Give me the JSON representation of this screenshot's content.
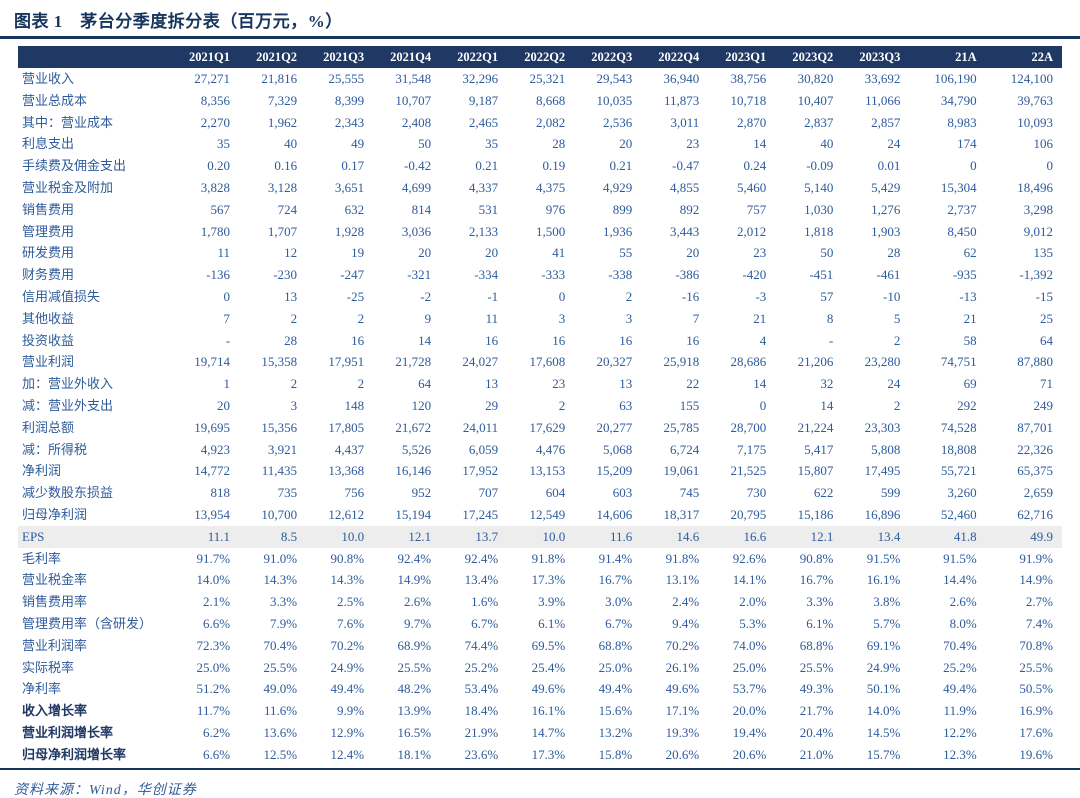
{
  "figure": {
    "title": "图表 1　茅台分季度拆分表（百万元，%）",
    "source": "资料来源：Wind，华创证券"
  },
  "colors": {
    "header_bg": "#1F3864",
    "header_text": "#FFFFFF",
    "value_text": "#2E5B9B",
    "title_text": "#17365D",
    "bold_label_text": "#1F3864",
    "highlight_row_bg": "#EDEDED",
    "rule": "#17365D"
  },
  "table": {
    "columns": [
      "2021Q1",
      "2021Q2",
      "2021Q3",
      "2021Q4",
      "2022Q1",
      "2022Q2",
      "2022Q3",
      "2022Q4",
      "2023Q1",
      "2023Q2",
      "2023Q3",
      "21A",
      "22A"
    ],
    "rows": [
      {
        "label": "营业收入",
        "style": "normal",
        "values": [
          "27,271",
          "21,816",
          "25,555",
          "31,548",
          "32,296",
          "25,321",
          "29,543",
          "36,940",
          "38,756",
          "30,820",
          "33,692",
          "106,190",
          "124,100"
        ]
      },
      {
        "label": "营业总成本",
        "style": "normal",
        "values": [
          "8,356",
          "7,329",
          "8,399",
          "10,707",
          "9,187",
          "8,668",
          "10,035",
          "11,873",
          "10,718",
          "10,407",
          "11,066",
          "34,790",
          "39,763"
        ]
      },
      {
        "label": "其中：营业成本",
        "style": "normal",
        "values": [
          "2,270",
          "1,962",
          "2,343",
          "2,408",
          "2,465",
          "2,082",
          "2,536",
          "3,011",
          "2,870",
          "2,837",
          "2,857",
          "8,983",
          "10,093"
        ]
      },
      {
        "label": "利息支出",
        "style": "normal",
        "values": [
          "35",
          "40",
          "49",
          "50",
          "35",
          "28",
          "20",
          "23",
          "14",
          "40",
          "24",
          "174",
          "106"
        ]
      },
      {
        "label": "手续费及佣金支出",
        "style": "normal",
        "values": [
          "0.20",
          "0.16",
          "0.17",
          "-0.42",
          "0.21",
          "0.19",
          "0.21",
          "-0.47",
          "0.24",
          "-0.09",
          "0.01",
          "0",
          "0"
        ]
      },
      {
        "label": "营业税金及附加",
        "style": "normal",
        "values": [
          "3,828",
          "3,128",
          "3,651",
          "4,699",
          "4,337",
          "4,375",
          "4,929",
          "4,855",
          "5,460",
          "5,140",
          "5,429",
          "15,304",
          "18,496"
        ]
      },
      {
        "label": "销售费用",
        "style": "normal",
        "values": [
          "567",
          "724",
          "632",
          "814",
          "531",
          "976",
          "899",
          "892",
          "757",
          "1,030",
          "1,276",
          "2,737",
          "3,298"
        ]
      },
      {
        "label": "管理费用",
        "style": "normal",
        "values": [
          "1,780",
          "1,707",
          "1,928",
          "3,036",
          "2,133",
          "1,500",
          "1,936",
          "3,443",
          "2,012",
          "1,818",
          "1,903",
          "8,450",
          "9,012"
        ]
      },
      {
        "label": "研发费用",
        "style": "normal",
        "values": [
          "11",
          "12",
          "19",
          "20",
          "20",
          "41",
          "55",
          "20",
          "23",
          "50",
          "28",
          "62",
          "135"
        ]
      },
      {
        "label": "财务费用",
        "style": "normal",
        "values": [
          "-136",
          "-230",
          "-247",
          "-321",
          "-334",
          "-333",
          "-338",
          "-386",
          "-420",
          "-451",
          "-461",
          "-935",
          "-1,392"
        ]
      },
      {
        "label": "信用减值损失",
        "style": "normal",
        "values": [
          "0",
          "13",
          "-25",
          "-2",
          "-1",
          "0",
          "2",
          "-16",
          "-3",
          "57",
          "-10",
          "-13",
          "-15"
        ]
      },
      {
        "label": "其他收益",
        "style": "normal",
        "values": [
          "7",
          "2",
          "2",
          "9",
          "11",
          "3",
          "3",
          "7",
          "21",
          "8",
          "5",
          "21",
          "25"
        ]
      },
      {
        "label": "投资收益",
        "style": "normal",
        "values": [
          "-",
          "28",
          "16",
          "14",
          "16",
          "16",
          "16",
          "16",
          "4",
          "-",
          "2",
          "58",
          "64"
        ]
      },
      {
        "label": "营业利润",
        "style": "normal",
        "values": [
          "19,714",
          "15,358",
          "17,951",
          "21,728",
          "24,027",
          "17,608",
          "20,327",
          "25,918",
          "28,686",
          "21,206",
          "23,280",
          "74,751",
          "87,880"
        ]
      },
      {
        "label": "加：营业外收入",
        "style": "normal",
        "values": [
          "1",
          "2",
          "2",
          "64",
          "13",
          "23",
          "13",
          "22",
          "14",
          "32",
          "24",
          "69",
          "71"
        ]
      },
      {
        "label": "减：营业外支出",
        "style": "normal",
        "values": [
          "20",
          "3",
          "148",
          "120",
          "29",
          "2",
          "63",
          "155",
          "0",
          "14",
          "2",
          "292",
          "249"
        ]
      },
      {
        "label": "利润总额",
        "style": "normal",
        "values": [
          "19,695",
          "15,356",
          "17,805",
          "21,672",
          "24,011",
          "17,629",
          "20,277",
          "25,785",
          "28,700",
          "21,224",
          "23,303",
          "74,528",
          "87,701"
        ]
      },
      {
        "label": "减：所得税",
        "style": "normal",
        "values": [
          "4,923",
          "3,921",
          "4,437",
          "5,526",
          "6,059",
          "4,476",
          "5,068",
          "6,724",
          "7,175",
          "5,417",
          "5,808",
          "18,808",
          "22,326"
        ]
      },
      {
        "label": "净利润",
        "style": "normal",
        "values": [
          "14,772",
          "11,435",
          "13,368",
          "16,146",
          "17,952",
          "13,153",
          "15,209",
          "19,061",
          "21,525",
          "15,807",
          "17,495",
          "55,721",
          "65,375"
        ]
      },
      {
        "label": "减少数股东损益",
        "style": "normal",
        "values": [
          "818",
          "735",
          "756",
          "952",
          "707",
          "604",
          "603",
          "745",
          "730",
          "622",
          "599",
          "3,260",
          "2,659"
        ]
      },
      {
        "label": "归母净利润",
        "style": "normal",
        "values": [
          "13,954",
          "10,700",
          "12,612",
          "15,194",
          "17,245",
          "12,549",
          "14,606",
          "18,317",
          "20,795",
          "15,186",
          "16,896",
          "52,460",
          "62,716"
        ]
      },
      {
        "label": "EPS",
        "style": "highlight",
        "values": [
          "11.1",
          "8.5",
          "10.0",
          "12.1",
          "13.7",
          "10.0",
          "11.6",
          "14.6",
          "16.6",
          "12.1",
          "13.4",
          "41.8",
          "49.9"
        ]
      },
      {
        "label": "毛利率",
        "style": "normal",
        "values": [
          "91.7%",
          "91.0%",
          "90.8%",
          "92.4%",
          "92.4%",
          "91.8%",
          "91.4%",
          "91.8%",
          "92.6%",
          "90.8%",
          "91.5%",
          "91.5%",
          "91.9%"
        ]
      },
      {
        "label": "营业税金率",
        "style": "normal",
        "values": [
          "14.0%",
          "14.3%",
          "14.3%",
          "14.9%",
          "13.4%",
          "17.3%",
          "16.7%",
          "13.1%",
          "14.1%",
          "16.7%",
          "16.1%",
          "14.4%",
          "14.9%"
        ]
      },
      {
        "label": "销售费用率",
        "style": "normal",
        "values": [
          "2.1%",
          "3.3%",
          "2.5%",
          "2.6%",
          "1.6%",
          "3.9%",
          "3.0%",
          "2.4%",
          "2.0%",
          "3.3%",
          "3.8%",
          "2.6%",
          "2.7%"
        ]
      },
      {
        "label": "管理费用率（含研发）",
        "style": "normal",
        "values": [
          "6.6%",
          "7.9%",
          "7.6%",
          "9.7%",
          "6.7%",
          "6.1%",
          "6.7%",
          "9.4%",
          "5.3%",
          "6.1%",
          "5.7%",
          "8.0%",
          "7.4%"
        ]
      },
      {
        "label": "营业利润率",
        "style": "normal",
        "values": [
          "72.3%",
          "70.4%",
          "70.2%",
          "68.9%",
          "74.4%",
          "69.5%",
          "68.8%",
          "70.2%",
          "74.0%",
          "68.8%",
          "69.1%",
          "70.4%",
          "70.8%"
        ]
      },
      {
        "label": "实际税率",
        "style": "normal",
        "values": [
          "25.0%",
          "25.5%",
          "24.9%",
          "25.5%",
          "25.2%",
          "25.4%",
          "25.0%",
          "26.1%",
          "25.0%",
          "25.5%",
          "24.9%",
          "25.2%",
          "25.5%"
        ]
      },
      {
        "label": "净利率",
        "style": "normal",
        "values": [
          "51.2%",
          "49.0%",
          "49.4%",
          "48.2%",
          "53.4%",
          "49.6%",
          "49.4%",
          "49.6%",
          "53.7%",
          "49.3%",
          "50.1%",
          "49.4%",
          "50.5%"
        ]
      },
      {
        "label": "收入增长率",
        "style": "bold",
        "values": [
          "11.7%",
          "11.6%",
          "9.9%",
          "13.9%",
          "18.4%",
          "16.1%",
          "15.6%",
          "17.1%",
          "20.0%",
          "21.7%",
          "14.0%",
          "11.9%",
          "16.9%"
        ]
      },
      {
        "label": "营业利润增长率",
        "style": "bold",
        "values": [
          "6.2%",
          "13.6%",
          "12.9%",
          "16.5%",
          "21.9%",
          "14.7%",
          "13.2%",
          "19.3%",
          "19.4%",
          "20.4%",
          "14.5%",
          "12.2%",
          "17.6%"
        ]
      },
      {
        "label": "归母净利润增长率",
        "style": "bold",
        "values": [
          "6.6%",
          "12.5%",
          "12.4%",
          "18.1%",
          "23.6%",
          "17.3%",
          "15.8%",
          "20.6%",
          "20.6%",
          "21.0%",
          "15.7%",
          "12.3%",
          "19.6%"
        ]
      }
    ]
  }
}
